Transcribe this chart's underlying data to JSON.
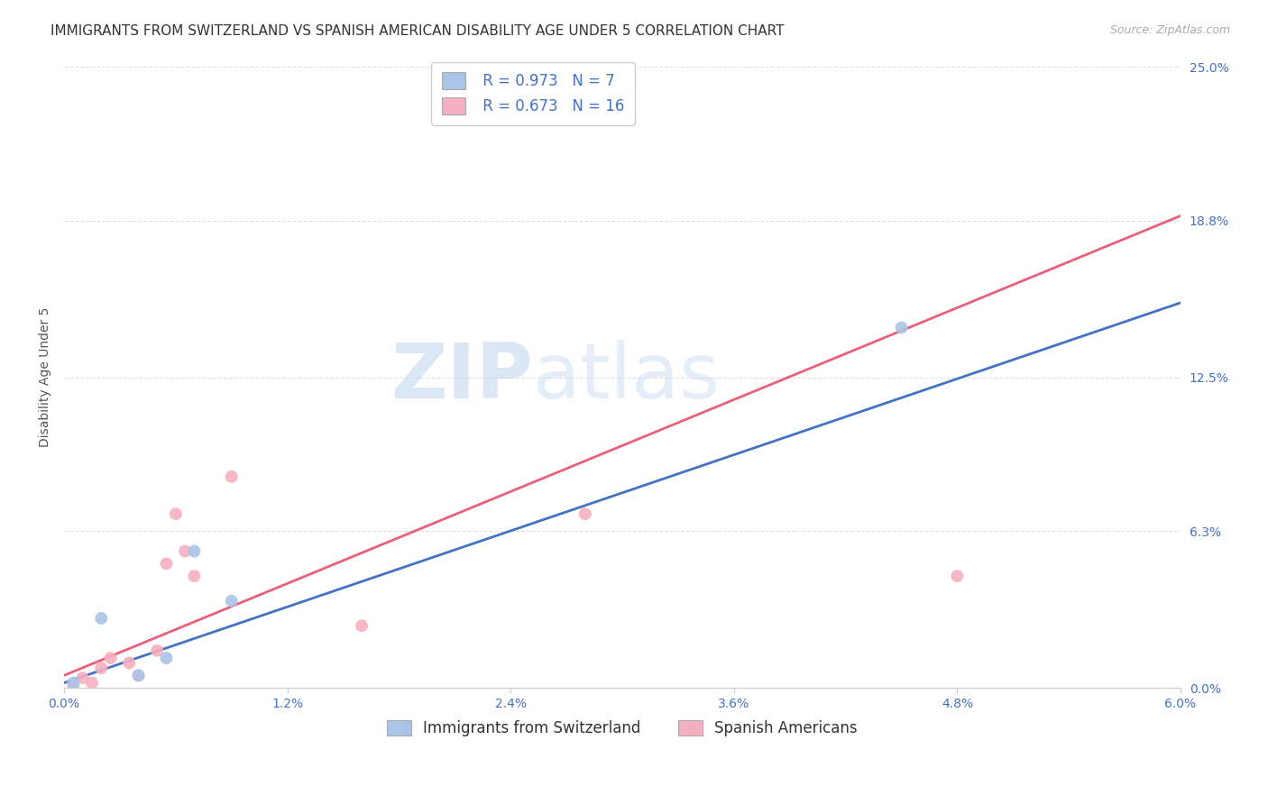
{
  "title": "IMMIGRANTS FROM SWITZERLAND VS SPANISH AMERICAN DISABILITY AGE UNDER 5 CORRELATION CHART",
  "source": "Source: ZipAtlas.com",
  "xlabel_ticks": [
    "0.0%",
    "1.2%",
    "2.4%",
    "3.6%",
    "4.8%",
    "6.0%"
  ],
  "xlabel_vals": [
    0.0,
    1.2,
    2.4,
    3.6,
    4.8,
    6.0
  ],
  "ylabel": "Disability Age Under 5",
  "ylabel_right_ticks": [
    "25.0%",
    "18.8%",
    "12.5%",
    "6.3%",
    "0.0%"
  ],
  "ylabel_right_vals": [
    25.0,
    18.8,
    12.5,
    6.3,
    0.0
  ],
  "xlim": [
    0.0,
    6.0
  ],
  "ylim": [
    0.0,
    25.0
  ],
  "background_color": "#ffffff",
  "grid_color": "#dddddd",
  "swiss_color": "#aac4e8",
  "spanish_color": "#f5afc0",
  "swiss_line_color": "#4472c4",
  "spanish_line_color": "#e8607a",
  "legend_swiss_R": "0.973",
  "legend_swiss_N": "7",
  "legend_spanish_R": "0.673",
  "legend_spanish_N": "16",
  "swiss_scatter_x": [
    0.05,
    0.2,
    0.4,
    0.55,
    0.7,
    0.9,
    4.5
  ],
  "swiss_scatter_y": [
    0.2,
    2.8,
    0.5,
    1.2,
    5.5,
    3.5,
    14.5
  ],
  "spanish_scatter_x": [
    0.05,
    0.1,
    0.15,
    0.2,
    0.25,
    0.35,
    0.4,
    0.5,
    0.55,
    0.6,
    0.65,
    0.7,
    0.9,
    1.6,
    2.8,
    4.8
  ],
  "spanish_scatter_y": [
    0.1,
    0.4,
    0.2,
    0.8,
    1.2,
    1.0,
    0.5,
    1.5,
    5.0,
    7.0,
    5.5,
    4.5,
    8.5,
    2.5,
    7.0,
    4.5
  ],
  "swiss_trend_x0": 0.0,
  "swiss_trend_x1": 6.0,
  "swiss_trend_y0": 0.2,
  "swiss_trend_y1": 15.5,
  "spanish_trend_x0": 0.0,
  "spanish_trend_x1": 6.0,
  "spanish_trend_y0": 0.5,
  "spanish_trend_y1": 19.0,
  "watermark_part1": "ZIP",
  "watermark_part2": "atlas",
  "title_fontsize": 11,
  "axis_label_fontsize": 10,
  "tick_fontsize": 10,
  "legend_fontsize": 12,
  "source_fontsize": 9,
  "marker_size": 100
}
